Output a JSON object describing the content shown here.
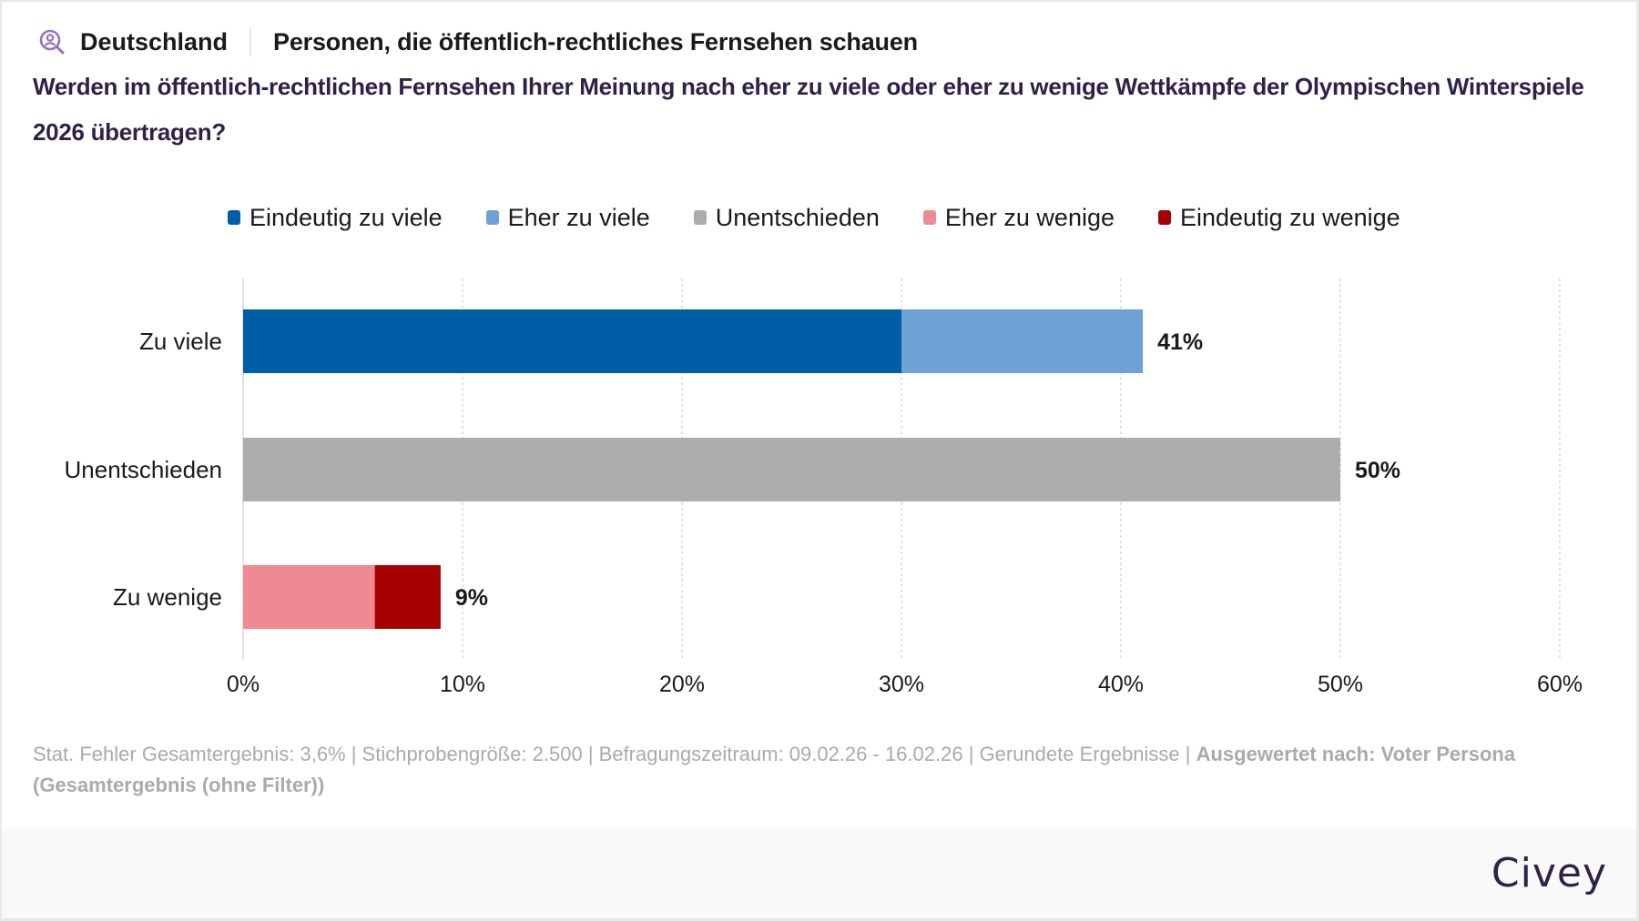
{
  "header": {
    "icon": "person-search-icon",
    "country": "Deutschland",
    "segment": "Personen, die öffentlich-rechtliches Fernsehen schauen"
  },
  "question": "Werden im öffentlich-rechtlichen Fernsehen Ihrer Meinung nach eher zu viele oder eher zu wenige Wettkämpfe der Olympischen Winterspiele 2026 übertragen?",
  "colors": {
    "accent_purple": "#9b6fc0",
    "title": "#2f2147",
    "eindeutig_zu_viele": "#005ea6",
    "eher_zu_viele": "#6fa0d6",
    "unentschieden": "#adadad",
    "eher_zu_wenige": "#f08a92",
    "eindeutig_zu_wenige": "#a60000"
  },
  "chart_data": {
    "type": "bar",
    "orientation": "horizontal",
    "stacked": true,
    "title": "Werden im öffentlich-rechtlichen Fernsehen Ihrer Meinung nach eher zu viele oder eher zu wenige Wettkämpfe der Olympischen Winterspiele 2026 übertragen?",
    "categories": [
      "Zu viele",
      "Unentschieden",
      "Zu wenige"
    ],
    "series": [
      {
        "name": "Eindeutig zu viele",
        "color": "#005ea6",
        "values": [
          30,
          0,
          0
        ]
      },
      {
        "name": "Eher zu viele",
        "color": "#6fa0d6",
        "values": [
          11,
          0,
          0
        ]
      },
      {
        "name": "Unentschieden",
        "color": "#adadad",
        "values": [
          0,
          50,
          0
        ]
      },
      {
        "name": "Eher zu wenige",
        "color": "#f08a92",
        "values": [
          0,
          0,
          6
        ]
      },
      {
        "name": "Eindeutig zu wenige",
        "color": "#a60000",
        "values": [
          0,
          0,
          3
        ]
      }
    ],
    "totals": [
      "41%",
      "50%",
      "9%"
    ],
    "xlabel": "",
    "ylabel": "",
    "xlim": [
      0,
      60
    ],
    "xticks": [
      0,
      10,
      20,
      30,
      40,
      50,
      60
    ],
    "xtick_labels": [
      "0%",
      "10%",
      "20%",
      "30%",
      "40%",
      "50%",
      "60%"
    ],
    "grid": true,
    "legend": "top"
  },
  "footnote": {
    "text": "Stat. Fehler Gesamtergebnis: 3,6% | Stichprobengröße: 2.500 | Befragungszeitraum: 09.02.26 - 16.02.26 | Gerundete Ergebnisse | ",
    "bold": "Ausgewertet nach: Voter Persona (Gesamtergebnis (ohne Filter))"
  },
  "brand": "Civey"
}
